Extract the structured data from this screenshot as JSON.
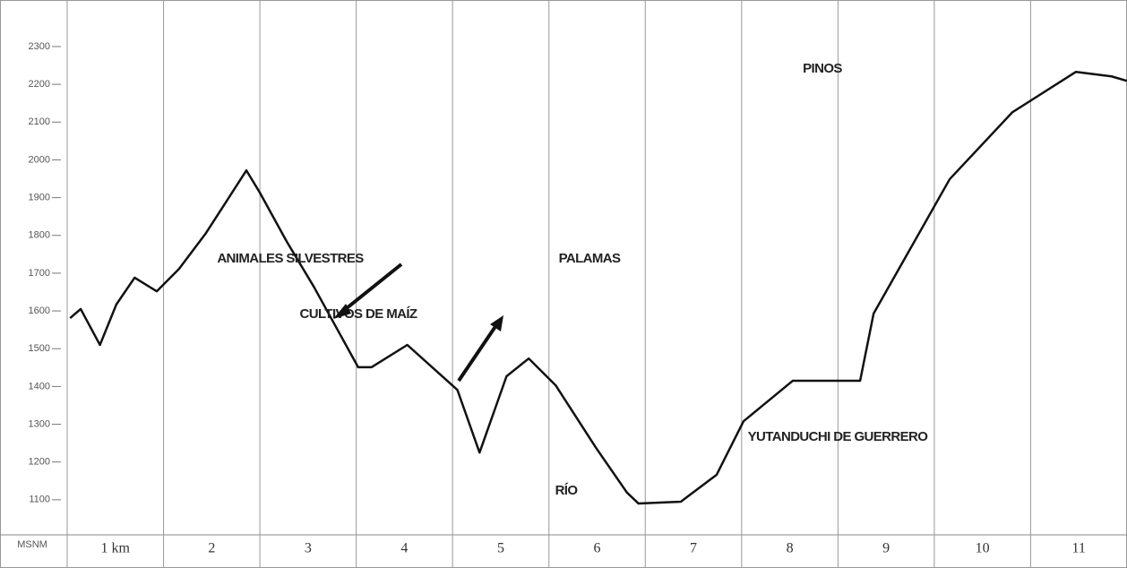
{
  "chart_data": {
    "type": "line",
    "ylabel": "MSNM",
    "x": [
      0.03,
      0.14,
      0.34,
      0.51,
      0.7,
      0.93,
      1.16,
      1.44,
      1.86,
      2.0,
      2.28,
      2.56,
      3.02,
      3.16,
      3.53,
      4.05,
      4.28,
      4.56,
      4.79,
      5.07,
      5.49,
      5.81,
      5.93,
      6.37,
      6.74,
      7.02,
      7.53,
      8.23,
      8.37,
      9.16,
      9.81,
      10.47,
      10.84,
      11.0
    ],
    "series": [
      {
        "name": null,
        "color": "#111111",
        "values": [
          1581,
          1605,
          1510,
          1617,
          1688,
          1652,
          1711,
          1806,
          1972,
          1913,
          1783,
          1664,
          1451,
          1451,
          1510,
          1391,
          1225,
          1427,
          1474,
          1403,
          1237,
          1119,
          1090,
          1095,
          1166,
          1308,
          1415,
          1415,
          1593,
          1949,
          2126,
          2233,
          2221,
          2209
        ]
      }
    ],
    "xlim": [
      0,
      11
    ],
    "xticks": [
      {
        "value": 0.5,
        "label": "1 km"
      },
      {
        "value": 1.5,
        "label": "2"
      },
      {
        "value": 2.5,
        "label": "3"
      },
      {
        "value": 3.5,
        "label": "4"
      },
      {
        "value": 4.5,
        "label": "5"
      },
      {
        "value": 5.5,
        "label": "6"
      },
      {
        "value": 6.5,
        "label": "7"
      },
      {
        "value": 7.5,
        "label": "8"
      },
      {
        "value": 8.5,
        "label": "9"
      },
      {
        "value": 9.5,
        "label": "10"
      },
      {
        "value": 10.5,
        "label": "11"
      }
    ],
    "ylim": [
      1000,
      2400
    ],
    "yticks": [
      1100,
      1200,
      1300,
      1400,
      1500,
      1600,
      1700,
      1800,
      1900,
      2000,
      2100,
      2200,
      2300
    ],
    "annotations": [
      "ANIMALES SILVESTRES",
      "CULTIVOS DE MAÍZ",
      "PALAMAS",
      "PINOS",
      "RÍO",
      "YUTANDUCHI DE GUERRERO"
    ]
  }
}
